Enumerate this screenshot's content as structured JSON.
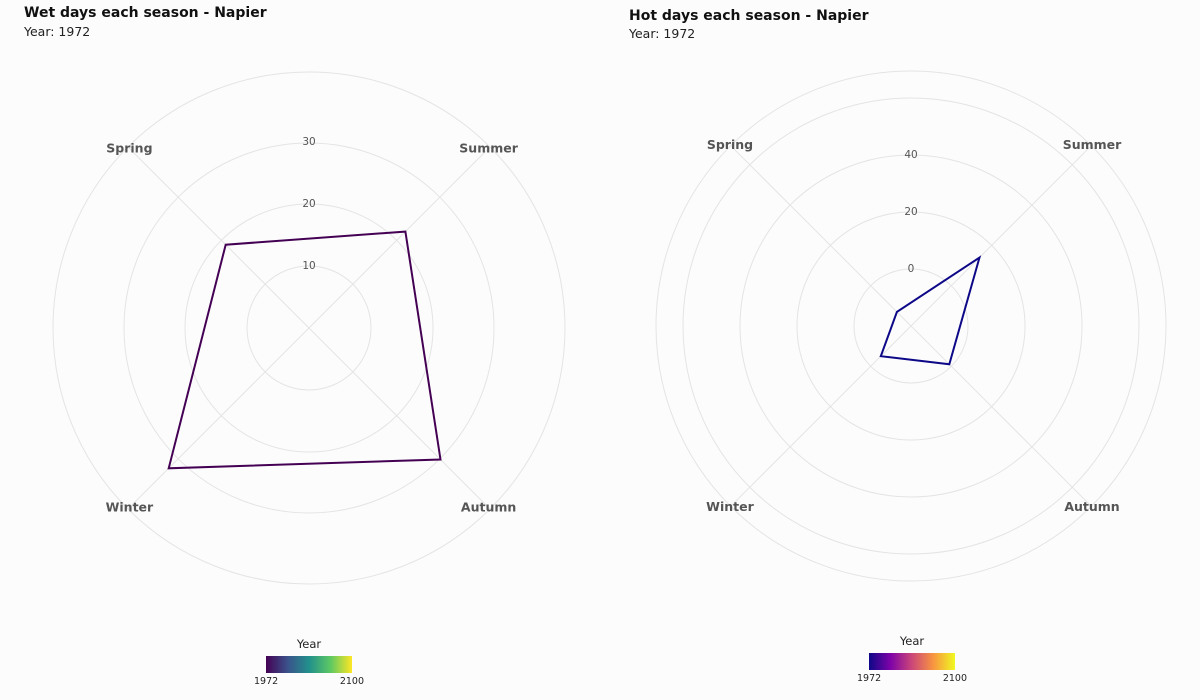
{
  "charts": [
    {
      "title": "Wet days each season - Napier",
      "subtitle": "Year: 1972",
      "legend": {
        "title": "Year",
        "min_label": "1972",
        "max_label": "2100"
      }
    },
    {
      "title": "Hot days each season - Napier",
      "subtitle": "Year: 1972",
      "legend": {
        "title": "Year",
        "min_label": "1972",
        "max_label": "2100"
      }
    }
  ],
  "chart_data": [
    {
      "type": "radar",
      "title": "Wet days each season - Napier",
      "subtitle": "Year: 1972",
      "axes": [
        "Summer",
        "Autumn",
        "Winter",
        "Spring"
      ],
      "radial_ticks": [
        10,
        20,
        30
      ],
      "grid": true,
      "series": [
        {
          "values": [
            22,
            30,
            32,
            19
          ],
          "color": "#440154"
        }
      ],
      "legend": {
        "title": "Year",
        "position": "bottom",
        "range": [
          1972,
          2100
        ],
        "palette": "viridis",
        "colors": [
          "#440154",
          "#3b528b",
          "#21908c",
          "#5dc863",
          "#fde725"
        ]
      }
    },
    {
      "type": "radar",
      "title": "Hot days each season - Napier",
      "subtitle": "Year: 1972",
      "axes": [
        "Summer",
        "Autumn",
        "Winter",
        "Spring"
      ],
      "radial_ticks": [
        0,
        20,
        40
      ],
      "grid": true,
      "series": [
        {
          "values": [
            14,
            -1,
            -5,
            -13
          ],
          "color": "#0d0887"
        }
      ],
      "legend": {
        "title": "Year",
        "position": "bottom",
        "range": [
          1972,
          2100
        ],
        "palette": "plasma",
        "colors": [
          "#0d0887",
          "#7e03a8",
          "#cc4778",
          "#f89540",
          "#f0f921"
        ]
      }
    }
  ]
}
